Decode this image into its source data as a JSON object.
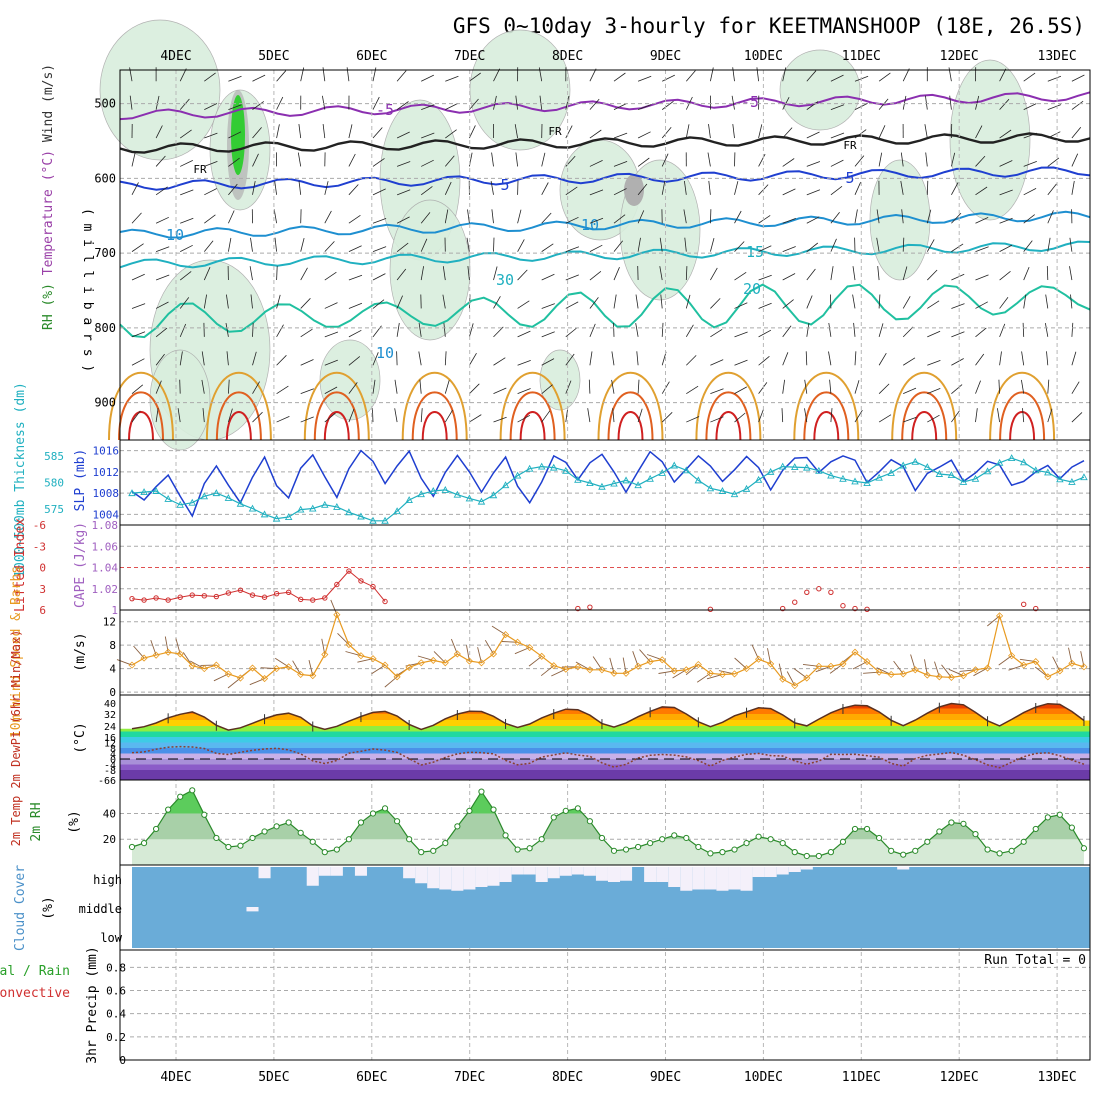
{
  "chart_data": {
    "type": "meteogram",
    "title": "GFS 0~10day 3-hourly for KEETMANSHOOP (18E, 26.5S)",
    "dates": [
      "4DEC",
      "5DEC",
      "6DEC",
      "7DEC",
      "8DEC",
      "9DEC",
      "10DEC",
      "11DEC",
      "12DEC",
      "13DEC"
    ],
    "panels": [
      {
        "id": "upper_air",
        "ylabel_parts": [
          {
            "text": "RH (%)",
            "color": "#2a8a2a"
          },
          {
            "text": "Temperature (°C)",
            "color": "#9a40a8"
          },
          {
            "text": "Wind (m/s)",
            "color": "#333333"
          }
        ],
        "ylabel_right": "( m i l l i b a r s )",
        "yticks": [
          500,
          600,
          700,
          800,
          900
        ],
        "ylim": [
          455,
          950
        ],
        "contour_labels": [
          "-5",
          "-5",
          "FR",
          "FR",
          "FR",
          "5",
          "5",
          "10",
          "10",
          "15",
          "20",
          "30",
          "10"
        ],
        "isotherm_levels": [
          -5,
          0,
          5,
          10,
          15,
          20,
          25,
          30,
          35
        ]
      },
      {
        "id": "thickness_slp",
        "ylabel_left": "1000~500mb Thickness (dm)",
        "ylabel_right": "SLP (mb)",
        "yticks_left": [
          575,
          580,
          585
        ],
        "yticks_right": [
          1004,
          1008,
          1012,
          1016
        ],
        "slp": [
          1008.3,
          1006.7,
          1009.2,
          1011.4,
          1007.4,
          1003.7,
          1009.8,
          1013.1,
          1009.5,
          1006.2,
          1011.0,
          1014.8,
          1009.4,
          1007.1,
          1012.7,
          1015.2,
          1011.1,
          1007.2,
          1012.6,
          1016.0,
          1014.0,
          1009.8,
          1013.1,
          1015.9,
          1010.8,
          1007.4,
          1011.9,
          1015.1,
          1012.0,
          1008.2,
          1011.8,
          1014.8,
          1009.3,
          1006.2,
          1010.1,
          1015.0,
          1013.8,
          1010.5,
          1013.7,
          1015.3,
          1012.0,
          1008.2,
          1012.1,
          1015.8,
          1013.9,
          1010.1,
          1012.5,
          1015.0,
          1013.1,
          1010.2,
          1012.4,
          1014.9,
          1012.8,
          1008.6,
          1012.3,
          1014.6,
          1014.7,
          1011.9,
          1013.9,
          1015.0,
          1014.2,
          1010.0,
          1012.0,
          1014.3,
          1013.0,
          1008.5,
          1011.7,
          1012.9,
          1014.2,
          1010.2,
          1011.8,
          1014.0,
          1013.3,
          1009.5,
          1010.2,
          1012.0,
          1013.2,
          1010.7,
          1012.9,
          1014.1
        ],
        "thickness": [
          578.0,
          578.2,
          578.4,
          576.9,
          575.8,
          576.2,
          577.4,
          578.0,
          577.1,
          576.0,
          575.1,
          574.0,
          573.2,
          573.5,
          574.9,
          575.1,
          575.8,
          575.4,
          574.4,
          573.6,
          572.8,
          572.8,
          574.6,
          576.7,
          577.8,
          578.4,
          578.6,
          577.7,
          577.0,
          576.4,
          577.6,
          579.5,
          581.3,
          582.6,
          583.0,
          582.8,
          582.2,
          580.5,
          579.9,
          579.2,
          579.8,
          580.4,
          579.5,
          580.7,
          581.8,
          583.2,
          582.3,
          580.4,
          578.9,
          578.4,
          577.8,
          578.8,
          580.5,
          582.0,
          583.0,
          582.9,
          582.8,
          582.2,
          581.3,
          580.7,
          580.2,
          579.9,
          580.9,
          581.8,
          583.2,
          583.9,
          582.9,
          581.6,
          581.4,
          580.1,
          580.7,
          582.1,
          583.7,
          584.6,
          583.8,
          582.3,
          581.9,
          580.6,
          580.1,
          581.0
        ]
      },
      {
        "id": "cape_li",
        "ylabel_left": "Lifted Index",
        "ylabel_right": "CAPE (J/kg)",
        "yticks_left": [
          "-6",
          "-3",
          "0",
          "3",
          "6"
        ],
        "yticks_right": [
          1,
          1.02,
          1.04,
          1.06,
          1.08
        ],
        "li": [
          4.4,
          4.6,
          4.3,
          4.6,
          4.2,
          3.9,
          4.0,
          4.1,
          3.6,
          3.2,
          3.9,
          4.2,
          3.7,
          3.5,
          4.5,
          4.6,
          4.3,
          2.4,
          0.5,
          1.9,
          2.7,
          4.8,
          null,
          null,
          null,
          null,
          null,
          null,
          null,
          null,
          null,
          null,
          null,
          null,
          null,
          null,
          null,
          null,
          null,
          null,
          null,
          null,
          null,
          null,
          null,
          null,
          null,
          null,
          null,
          null,
          null,
          null,
          null,
          null,
          null,
          null,
          null,
          null,
          null,
          null,
          null,
          null,
          null,
          null,
          null,
          null,
          null,
          null,
          null,
          null,
          null,
          null,
          null,
          null,
          null,
          null,
          null,
          null,
          null,
          null
        ],
        "li_events": [
          [
            37,
            5.8
          ],
          [
            38,
            5.6
          ],
          [
            48,
            5.9
          ],
          [
            54,
            5.8
          ],
          [
            55,
            4.9
          ],
          [
            56,
            3.5
          ],
          [
            57,
            3.0
          ],
          [
            58,
            3.5
          ],
          [
            59,
            5.4
          ],
          [
            60,
            5.8
          ],
          [
            61,
            5.9
          ],
          [
            74,
            5.2
          ],
          [
            75,
            5.8
          ],
          [
            85,
            4.5
          ],
          [
            86,
            3.2
          ],
          [
            87,
            2.7
          ],
          [
            88,
            3.3
          ],
          [
            89,
            4.9
          ],
          [
            95,
            4.8
          ],
          [
            96,
            3.2
          ],
          [
            97,
            2.5
          ],
          [
            98,
            4.0
          ],
          [
            99,
            5.6
          ]
        ]
      },
      {
        "id": "wind10m",
        "ylabel_left": "10m Wind Speed & Barbs",
        "ylabel_right": "(m/s)",
        "yticks": [
          0,
          4,
          8,
          12
        ],
        "speed": [
          4.6,
          5.8,
          6.3,
          6.8,
          6.5,
          4.5,
          4.0,
          4.6,
          3.1,
          2.4,
          4.1,
          2.3,
          4.0,
          4.3,
          3.0,
          2.8,
          6.4,
          13.2,
          8.1,
          6.2,
          5.7,
          4.6,
          2.6,
          4.2,
          5.0,
          5.4,
          5.0,
          6.5,
          5.3,
          5.0,
          6.5,
          9.8,
          8.5,
          7.6,
          6.1,
          4.5,
          3.9,
          4.3,
          3.8,
          3.8,
          3.2,
          3.2,
          4.4,
          5.2,
          5.5,
          3.6,
          3.8,
          4.7,
          3.2,
          3.0,
          3.1,
          4.0,
          5.6,
          4.8,
          2.2,
          1.1,
          2.4,
          4.4,
          4.4,
          4.8,
          6.8,
          5.2,
          3.4,
          3.0,
          3.1,
          3.8,
          2.9,
          2.6,
          2.5,
          2.8,
          3.8,
          4.1,
          13.0,
          6.2,
          4.6,
          5.2,
          2.6,
          3.6,
          4.9,
          4.3
        ]
      },
      {
        "id": "temp2m",
        "ylabel_left": "2m Temp 2m DewPt (6hr Min/Max)",
        "ylabel_right": "(°C)",
        "yticks": [
          -66,
          -8,
          -4,
          0,
          4,
          8,
          12,
          16,
          24,
          32,
          40
        ],
        "band_colors": [
          "#6b3ba8",
          "#8b5cc8",
          "#a890d8",
          "#c8b0e8",
          "#4a90e8",
          "#5ab8f0",
          "#3ecbe6",
          "#20d9a0",
          "#90ee40",
          "#ffd000",
          "#ffaa00",
          "#ff7a00",
          "#e84000",
          "#c82000",
          "#901010"
        ],
        "temp": [
          22.0,
          23.5,
          26.0,
          29.5,
          31.8,
          33.5,
          30.0,
          24.5,
          21.0,
          22.7,
          25.8,
          28.9,
          31.4,
          32.6,
          29.8,
          24.0,
          21.5,
          23.8,
          27.2,
          30.4,
          33.2,
          33.9,
          30.7,
          25.0,
          21.5,
          24.5,
          28.8,
          31.9,
          34.0,
          33.8,
          30.5,
          25.7,
          22.9,
          25.3,
          29.4,
          32.6,
          35.5,
          35.1,
          31.2,
          25.6,
          23.2,
          26.1,
          30.2,
          33.9,
          37.2,
          36.7,
          32.0,
          26.8,
          23.5,
          26.5,
          30.8,
          33.6,
          36.5,
          35.9,
          31.4,
          26.1,
          24.1,
          28.6,
          32.9,
          36.3,
          38.4,
          38.0,
          33.5,
          27.8,
          24.2,
          27.9,
          32.6,
          37.2,
          39.6,
          38.7,
          33.2,
          27.5,
          24.1,
          28.4,
          33.0,
          37.0,
          39.5,
          39.0,
          33.8,
          27.7
        ],
        "dewpt": [
          4.5,
          5.2,
          7.1,
          8.6,
          9.0,
          8.7,
          7.6,
          4.1,
          3.3,
          4.9,
          6.3,
          7.3,
          7.8,
          6.6,
          3.7,
          -1.4,
          -3.3,
          -1.1,
          4.2,
          5.6,
          7.3,
          6.5,
          4.8,
          0.2,
          -4.4,
          -2.3,
          1.2,
          3.7,
          4.9,
          4.6,
          3.8,
          -1.0,
          -4.2,
          -3.1,
          1.4,
          3.0,
          4.5,
          2.8,
          2.0,
          -2.8,
          -5.9,
          -3.9,
          0.7,
          2.7,
          3.3,
          2.8,
          1.5,
          -1.2,
          -5.2,
          -1.1,
          1.4,
          3.4,
          4.1,
          2.5,
          2.2,
          -1.4,
          -3.8,
          -1.5,
          3.4,
          3.3,
          3.4,
          2.4,
          1.4,
          -3.2,
          -5.2,
          0.3,
          2.7,
          3.6,
          4.7,
          2.7,
          -0.5,
          -4.3,
          -6.3,
          -2.3,
          1.7,
          4.0,
          4.5,
          2.4,
          -0.8,
          -3.8
        ]
      },
      {
        "id": "rh2m",
        "ylabel_left": "2m RH",
        "ylabel_right": "(%)",
        "yticks": [
          20,
          40
        ],
        "rh": [
          14,
          17,
          28,
          43,
          53,
          58,
          39,
          21,
          14,
          15,
          21,
          26,
          30,
          33,
          25,
          18,
          10,
          12,
          20,
          33,
          40,
          44,
          34,
          20,
          10,
          11,
          17,
          30,
          42,
          57,
          43,
          23,
          12,
          13,
          20,
          37,
          42,
          44,
          34,
          21,
          11,
          12,
          14,
          17,
          20,
          23,
          21,
          14,
          9,
          10,
          12,
          17,
          22,
          20,
          17,
          10,
          7,
          7,
          10,
          18,
          28,
          28,
          21,
          11,
          8,
          11,
          18,
          26,
          33,
          32,
          24,
          12,
          9,
          11,
          18,
          28,
          37,
          39,
          29,
          13
        ]
      },
      {
        "id": "cloud",
        "ylabel_left": "Cloud Cover",
        "ylabel_right": "(%)",
        "yticks": [
          "high",
          "middle",
          "low"
        ],
        "high_gaps": [
          [
            11,
            0.45
          ],
          [
            15,
            0.75
          ],
          [
            16,
            0.35
          ],
          [
            17,
            0.35
          ],
          [
            19,
            0.35
          ],
          [
            23,
            0.45
          ],
          [
            24,
            0.65
          ],
          [
            25,
            0.85
          ],
          [
            26,
            0.9
          ],
          [
            27,
            0.95
          ],
          [
            28,
            0.9
          ],
          [
            29,
            0.8
          ],
          [
            30,
            0.75
          ],
          [
            31,
            0.6
          ],
          [
            32,
            0.3
          ],
          [
            33,
            0.3
          ],
          [
            34,
            0.6
          ],
          [
            35,
            0.45
          ],
          [
            36,
            0.35
          ],
          [
            37,
            0.3
          ],
          [
            38,
            0.35
          ],
          [
            39,
            0.55
          ],
          [
            40,
            0.6
          ],
          [
            41,
            0.55
          ],
          [
            43,
            0.6
          ],
          [
            44,
            0.6
          ],
          [
            45,
            0.8
          ],
          [
            46,
            0.95
          ],
          [
            47,
            0.9
          ],
          [
            48,
            0.9
          ],
          [
            49,
            0.95
          ],
          [
            50,
            0.9
          ],
          [
            51,
            0.95
          ],
          [
            52,
            0.4
          ],
          [
            53,
            0.4
          ],
          [
            54,
            0.3
          ],
          [
            55,
            0.2
          ],
          [
            56,
            0.1
          ],
          [
            64,
            0.1
          ],
          [
            87,
            0.1
          ],
          [
            88,
            0.1
          ],
          [
            91,
            0.1
          ]
        ],
        "middle_gaps": [
          [
            10,
            0.35
          ]
        ]
      },
      {
        "id": "precip",
        "ylabel_left": "Total / Rain",
        "ylabel_left2": "Convective",
        "ylabel_right": "3hr Precip (mm)",
        "yticks": [
          0,
          0.2,
          0.4,
          0.6,
          0.8
        ],
        "annotation": "Run Total = 0",
        "values": []
      }
    ]
  }
}
